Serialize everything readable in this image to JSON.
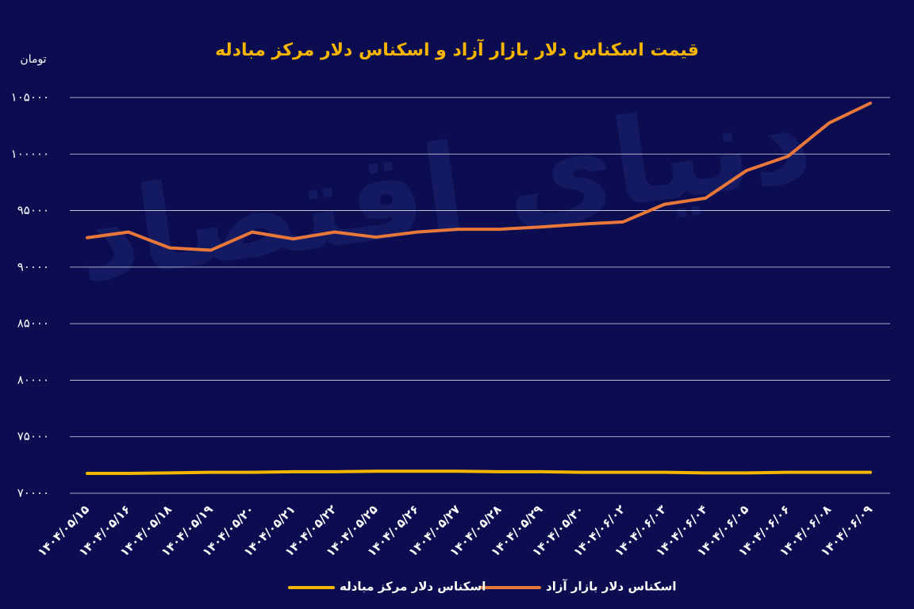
{
  "chart_data": {
    "type": "line",
    "title": "قیمت اسکناس دلار بازار آزاد و اسکناس دلار مرکز مبادله",
    "y_label": "تومان",
    "watermark": "دنیای اقتصاد",
    "categories": [
      "۱۴۰۴/۰۵/۱۵",
      "۱۴۰۴/۰۵/۱۶",
      "۱۴۰۴/۰۵/۱۸",
      "۱۴۰۴/۰۵/۱۹",
      "۱۴۰۴/۰۵/۲۰",
      "۱۴۰۴/۰۵/۲۱",
      "۱۴۰۴/۰۵/۲۲",
      "۱۴۰۴/۰۵/۲۵",
      "۱۴۰۴/۰۵/۲۶",
      "۱۴۰۴/۰۵/۲۷",
      "۱۴۰۴/۰۵/۲۸",
      "۱۴۰۴/۰۵/۲۹",
      "۱۴۰۴/۰۵/۳۰",
      "۱۴۰۴/۰۶/۰۲",
      "۱۴۰۴/۰۶/۰۳",
      "۱۴۰۴/۰۶/۰۴",
      "۱۴۰۴/۰۶/۰۵",
      "۱۴۰۴/۰۶/۰۶",
      "۱۴۰۴/۰۶/۰۸",
      "۱۴۰۴/۰۶/۰۹"
    ],
    "series": [
      {
        "name": "اسکناس دلار بازار آزاد",
        "color": "#e8773a",
        "values": [
          92600,
          93100,
          91700,
          91500,
          93100,
          92500,
          93100,
          92650,
          93100,
          93350,
          93350,
          93550,
          93800,
          94000,
          95550,
          96100,
          98550,
          99800,
          102750,
          104500
        ]
      },
      {
        "name": "اسکناس دلار مرکز مبادله",
        "color": "#f7b500",
        "values": [
          71750,
          71750,
          71800,
          71850,
          71850,
          71900,
          71900,
          71950,
          71950,
          71950,
          71900,
          71900,
          71850,
          71850,
          71850,
          71800,
          71800,
          71850,
          71850,
          71850
        ]
      }
    ],
    "ylim": [
      70000,
      105000
    ],
    "yticks": [
      {
        "value": 70000,
        "label": "۷۰۰۰۰"
      },
      {
        "value": 75000,
        "label": "۷۵۰۰۰"
      },
      {
        "value": 80000,
        "label": "۸۰۰۰۰"
      },
      {
        "value": 85000,
        "label": "۸۵۰۰۰"
      },
      {
        "value": 90000,
        "label": "۹۰۰۰۰"
      },
      {
        "value": 95000,
        "label": "۹۵۰۰۰"
      },
      {
        "value": 100000,
        "label": "۱۰۰۰۰۰"
      },
      {
        "value": 105000,
        "label": "۱۰۵۰۰۰"
      }
    ],
    "grid": true,
    "legend": "bottom"
  }
}
